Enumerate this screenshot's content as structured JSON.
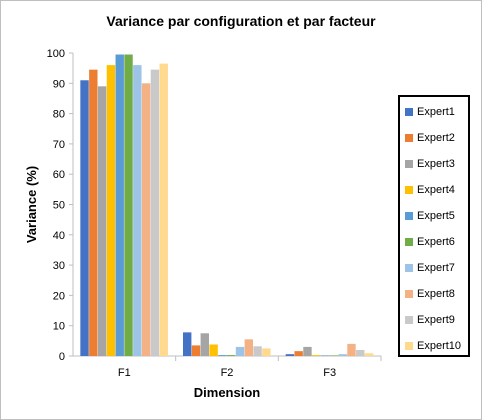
{
  "chart_data": {
    "type": "bar",
    "title": "Variance par configuration et par facteur",
    "xlabel": "Dimension",
    "ylabel": "Variance (%)",
    "ylim": [
      0,
      100
    ],
    "yticks": [
      "0",
      "10",
      "20",
      "30",
      "40",
      "50",
      "60",
      "70",
      "80",
      "90",
      "100"
    ],
    "categories": [
      "F1",
      "F2",
      "F3"
    ],
    "legend_position": "right",
    "grid": false,
    "series": [
      {
        "name": "Expert1",
        "color": "#4472c4",
        "values": [
          91.0,
          7.8,
          0.6
        ]
      },
      {
        "name": "Expert2",
        "color": "#ed7d31",
        "values": [
          94.5,
          3.5,
          1.6
        ]
      },
      {
        "name": "Expert3",
        "color": "#a5a5a5",
        "values": [
          89.0,
          7.5,
          3.0
        ]
      },
      {
        "name": "Expert4",
        "color": "#ffc000",
        "values": [
          96.0,
          3.8,
          0.3
        ]
      },
      {
        "name": "Expert5",
        "color": "#5b9bd5",
        "values": [
          99.5,
          0.3,
          0.2
        ]
      },
      {
        "name": "Expert6",
        "color": "#70ad47",
        "values": [
          99.5,
          0.3,
          0.2
        ]
      },
      {
        "name": "Expert7",
        "color": "#9dc3e6",
        "values": [
          96.0,
          3.0,
          0.6
        ]
      },
      {
        "name": "Expert8",
        "color": "#f4b183",
        "values": [
          90.0,
          5.5,
          4.0
        ]
      },
      {
        "name": "Expert9",
        "color": "#c9c9c9",
        "values": [
          94.5,
          3.2,
          2.0
        ]
      },
      {
        "name": "Expert10",
        "color": "#ffd98e",
        "values": [
          96.5,
          2.5,
          0.9
        ]
      }
    ]
  }
}
